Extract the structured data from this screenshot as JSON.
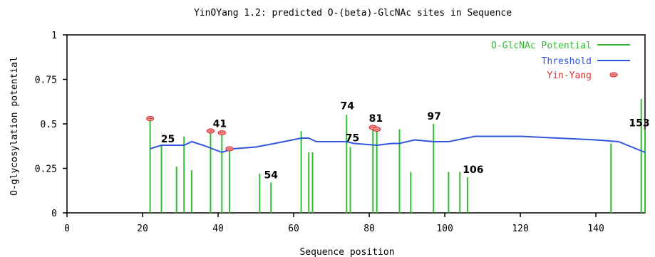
{
  "chart_data": {
    "type": "line",
    "title": "YinOYang 1.2: predicted O-(beta)-GlcNAc sites in Sequence",
    "xlabel": "Sequence position",
    "ylabel": "O-glycosylation potential",
    "xlim": [
      0,
      153
    ],
    "ylim": [
      0,
      1
    ],
    "x_ticks": [
      "0",
      "20",
      "40",
      "60",
      "80",
      "100",
      "120",
      "140"
    ],
    "x_tick_values": [
      0,
      20,
      40,
      60,
      80,
      100,
      120,
      140
    ],
    "y_ticks": [
      "0",
      "0.25",
      "0.5",
      "0.75",
      "1"
    ],
    "y_tick_values": [
      0,
      0.25,
      0.5,
      0.75,
      1
    ],
    "legend_position": "top-right",
    "legend": [
      {
        "label": "O-GlcNAc Potential",
        "color": "#33bb33",
        "kind": "line"
      },
      {
        "label": "Threshold",
        "color": "#3355dd",
        "kind": "line"
      },
      {
        "label": "Yin-Yang",
        "color": "#dd3333",
        "kind": "marker"
      }
    ],
    "series": [
      {
        "name": "O-GlcNAc Potential",
        "color": "#33bb33",
        "type": "stem",
        "x": [
          22,
          25,
          29,
          31,
          33,
          38,
          41,
          43,
          51,
          54,
          62,
          64,
          65,
          74,
          75,
          81,
          82,
          88,
          91,
          97,
          101,
          104,
          106,
          144,
          152,
          153
        ],
        "y": [
          0.53,
          0.38,
          0.26,
          0.43,
          0.24,
          0.46,
          0.45,
          0.35,
          0.22,
          0.17,
          0.46,
          0.34,
          0.34,
          0.55,
          0.37,
          0.48,
          0.46,
          0.47,
          0.23,
          0.5,
          0.23,
          0.23,
          0.2,
          0.39,
          0.64,
          0.47
        ]
      },
      {
        "name": "Threshold",
        "color": "#3355dd",
        "type": "line",
        "x": [
          22,
          25,
          29,
          31,
          33,
          36,
          41,
          44,
          50,
          55,
          62,
          64,
          66,
          74,
          76,
          82,
          86,
          88,
          92,
          97,
          101,
          108,
          114,
          120,
          130,
          140,
          146,
          153
        ],
        "y": [
          0.36,
          0.38,
          0.38,
          0.38,
          0.4,
          0.38,
          0.34,
          0.36,
          0.37,
          0.39,
          0.42,
          0.42,
          0.4,
          0.4,
          0.39,
          0.38,
          0.39,
          0.39,
          0.41,
          0.4,
          0.4,
          0.43,
          0.43,
          0.43,
          0.42,
          0.41,
          0.4,
          0.34
        ]
      },
      {
        "name": "Yin-Yang",
        "color": "#dd3333",
        "type": "marker",
        "x": [
          22,
          38,
          41,
          43,
          81,
          82
        ],
        "y": [
          0.53,
          0.46,
          0.45,
          0.36,
          0.48,
          0.47
        ]
      }
    ],
    "annotations": [
      {
        "text": "25",
        "x": 25,
        "y": 0.38
      },
      {
        "text": "41",
        "x": 41,
        "y": 0.45
      },
      {
        "text": "54",
        "x": 54,
        "y": 0.17
      },
      {
        "text": "74",
        "x": 74,
        "y": 0.55
      },
      {
        "text": "75",
        "x": 75,
        "y": 0.37
      },
      {
        "text": "81",
        "x": 81,
        "y": 0.48
      },
      {
        "text": "97",
        "x": 97,
        "y": 0.5
      },
      {
        "text": "106",
        "x": 106,
        "y": 0.2
      },
      {
        "text": "153",
        "x": 153,
        "y": 0.47
      }
    ]
  }
}
